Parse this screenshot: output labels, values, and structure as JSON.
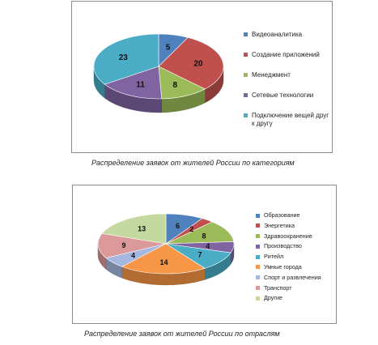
{
  "chart_data": [
    {
      "type": "pie",
      "title": "",
      "caption": "Распределение заявок от жителей России по категориям",
      "legend_position": "right",
      "slices": [
        {
          "name": "Видеоаналитика",
          "value": 5,
          "color": "#4f81bd"
        },
        {
          "name": "Создание приложений",
          "value": 20,
          "color": "#c0504d"
        },
        {
          "name": "Менеджмент",
          "value": 8,
          "color": "#9bbb59"
        },
        {
          "name": "Сетевые технологии",
          "value": 11,
          "color": "#8064a2"
        },
        {
          "name": "Подключение вещей друг к другу",
          "value": 23,
          "color": "#4bacc6"
        }
      ]
    },
    {
      "type": "pie",
      "title": "",
      "caption": "Распределение заявок от жителей России по отраслям",
      "legend_position": "right",
      "slices": [
        {
          "name": "Образование",
          "value": 6,
          "color": "#4f81bd"
        },
        {
          "name": "Энергетика",
          "value": 2,
          "color": "#c0504d"
        },
        {
          "name": "Здравоохранение",
          "value": 8,
          "color": "#9bbb59"
        },
        {
          "name": "Производство",
          "value": 4,
          "color": "#8064a2"
        },
        {
          "name": "Ритейл",
          "value": 7,
          "color": "#4bacc6"
        },
        {
          "name": "Умные города",
          "value": 14,
          "color": "#f79646"
        },
        {
          "name": "Спорт и развлечения",
          "value": 4,
          "color": "#a5b7de"
        },
        {
          "name": "Транспорт",
          "value": 9,
          "color": "#db9a99"
        },
        {
          "name": "Другие",
          "value": 13,
          "color": "#c4d9a0"
        }
      ]
    }
  ]
}
